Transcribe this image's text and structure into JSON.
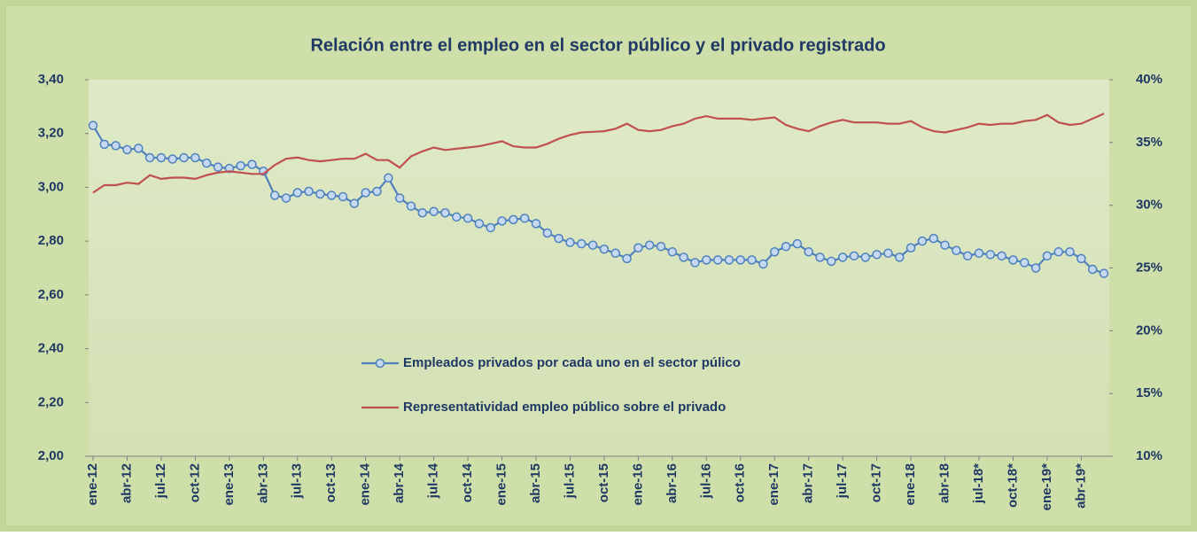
{
  "chart_data": {
    "type": "line",
    "title": "Relación entre el empleo en el sector público y el privado registrado",
    "categories": [
      "ene-12",
      null,
      null,
      "abr-12",
      null,
      null,
      "jul-12",
      null,
      null,
      "oct-12",
      null,
      null,
      "ene-13",
      null,
      null,
      "abr-13",
      null,
      null,
      "jul-13",
      null,
      null,
      "oct-13",
      null,
      null,
      "ene-14",
      null,
      null,
      "abr-14",
      null,
      null,
      "jul-14",
      null,
      null,
      "oct-14",
      null,
      null,
      "ene-15",
      null,
      null,
      "abr-15",
      null,
      null,
      "jul-15",
      null,
      null,
      "oct-15",
      null,
      null,
      "ene-16",
      null,
      null,
      "abr-16",
      null,
      null,
      "jul-16",
      null,
      null,
      "oct-16",
      null,
      null,
      "ene-17",
      null,
      null,
      "abr-17",
      null,
      null,
      "jul-17",
      null,
      null,
      "oct-17",
      null,
      null,
      "ene-18",
      null,
      null,
      "abr-18",
      null,
      null,
      "jul-18*",
      null,
      null,
      "oct-18*",
      null,
      null,
      "ene-19*",
      null,
      null,
      "abr-19*",
      null,
      null
    ],
    "series": [
      {
        "name": "Empleados privados por cada uno en el sector púlico",
        "color": "#4f81bd",
        "marker_fill": "#c6d9f1",
        "values": [
          3.23,
          3.16,
          3.155,
          3.14,
          3.145,
          3.11,
          3.11,
          3.105,
          3.11,
          3.11,
          3.09,
          3.075,
          3.07,
          3.08,
          3.085,
          3.06,
          2.97,
          2.96,
          2.98,
          2.985,
          2.975,
          2.97,
          2.965,
          2.94,
          2.98,
          2.985,
          3.035,
          2.96,
          2.93,
          2.905,
          2.91,
          2.905,
          2.89,
          2.885,
          2.865,
          2.85,
          2.875,
          2.88,
          2.885,
          2.865,
          2.83,
          2.81,
          2.795,
          2.79,
          2.785,
          2.77,
          2.755,
          2.735,
          2.775,
          2.785,
          2.78,
          2.76,
          2.74,
          2.72,
          2.73,
          2.73,
          2.73,
          2.73,
          2.73,
          2.715,
          2.76,
          2.78,
          2.79,
          2.76,
          2.74,
          2.725,
          2.74,
          2.745,
          2.74,
          2.75,
          2.755,
          2.74,
          2.775,
          2.8,
          2.81,
          2.785,
          2.765,
          2.745,
          2.755,
          2.75,
          2.745,
          2.73,
          2.72,
          2.7,
          2.745,
          2.76,
          2.76,
          2.735,
          2.695,
          2.68
        ]
      },
      {
        "name": "Representatividad empleo público sobre el privado",
        "color": "#c0504d",
        "axis": "y2",
        "values": [
          31,
          31.6,
          31.6,
          31.8,
          31.7,
          32.4,
          32.1,
          32.2,
          32.2,
          32.1,
          32.4,
          32.6,
          32.7,
          32.6,
          32.5,
          32.5,
          33.2,
          33.7,
          33.8,
          33.6,
          33.5,
          33.6,
          33.7,
          33.7,
          34.1,
          33.6,
          33.6,
          33.0,
          33.9,
          34.3,
          34.6,
          34.4,
          34.5,
          34.6,
          34.7,
          34.9,
          35.1,
          34.7,
          34.6,
          34.6,
          34.9,
          35.3,
          35.6,
          35.8,
          35.85,
          35.9,
          36.1,
          36.5,
          36.0,
          35.9,
          36.0,
          36.3,
          36.5,
          36.9,
          37.1,
          36.9,
          36.9,
          36.9,
          36.8,
          36.9,
          37.0,
          36.4,
          36.1,
          35.9,
          36.3,
          36.6,
          36.8,
          36.6,
          36.6,
          36.6,
          36.5,
          36.5,
          36.7,
          36.2,
          35.9,
          35.8,
          36.0,
          36.2,
          36.5,
          36.4,
          36.5,
          36.5,
          36.7,
          36.8,
          37.2,
          36.6,
          36.4,
          36.5,
          36.9,
          37.3
        ]
      }
    ],
    "ylim": [
      2.0,
      3.4
    ],
    "yticks": [
      {
        "value": 2.0,
        "label": "2,00"
      },
      {
        "value": 2.2,
        "label": "2,20"
      },
      {
        "value": 2.4,
        "label": "2,40"
      },
      {
        "value": 2.6,
        "label": "2,60"
      },
      {
        "value": 2.8,
        "label": "2,80"
      },
      {
        "value": 3.0,
        "label": "3,00"
      },
      {
        "value": 3.2,
        "label": "3,20"
      },
      {
        "value": 3.4,
        "label": "3,40"
      }
    ],
    "y2lim": [
      10,
      40
    ],
    "y2ticks": [
      {
        "value": 10,
        "label": "10%"
      },
      {
        "value": 15,
        "label": "15%"
      },
      {
        "value": 20,
        "label": "20%"
      },
      {
        "value": 25,
        "label": "25%"
      },
      {
        "value": 30,
        "label": "30%"
      },
      {
        "value": 35,
        "label": "35%"
      },
      {
        "value": 40,
        "label": "40%"
      }
    ]
  }
}
